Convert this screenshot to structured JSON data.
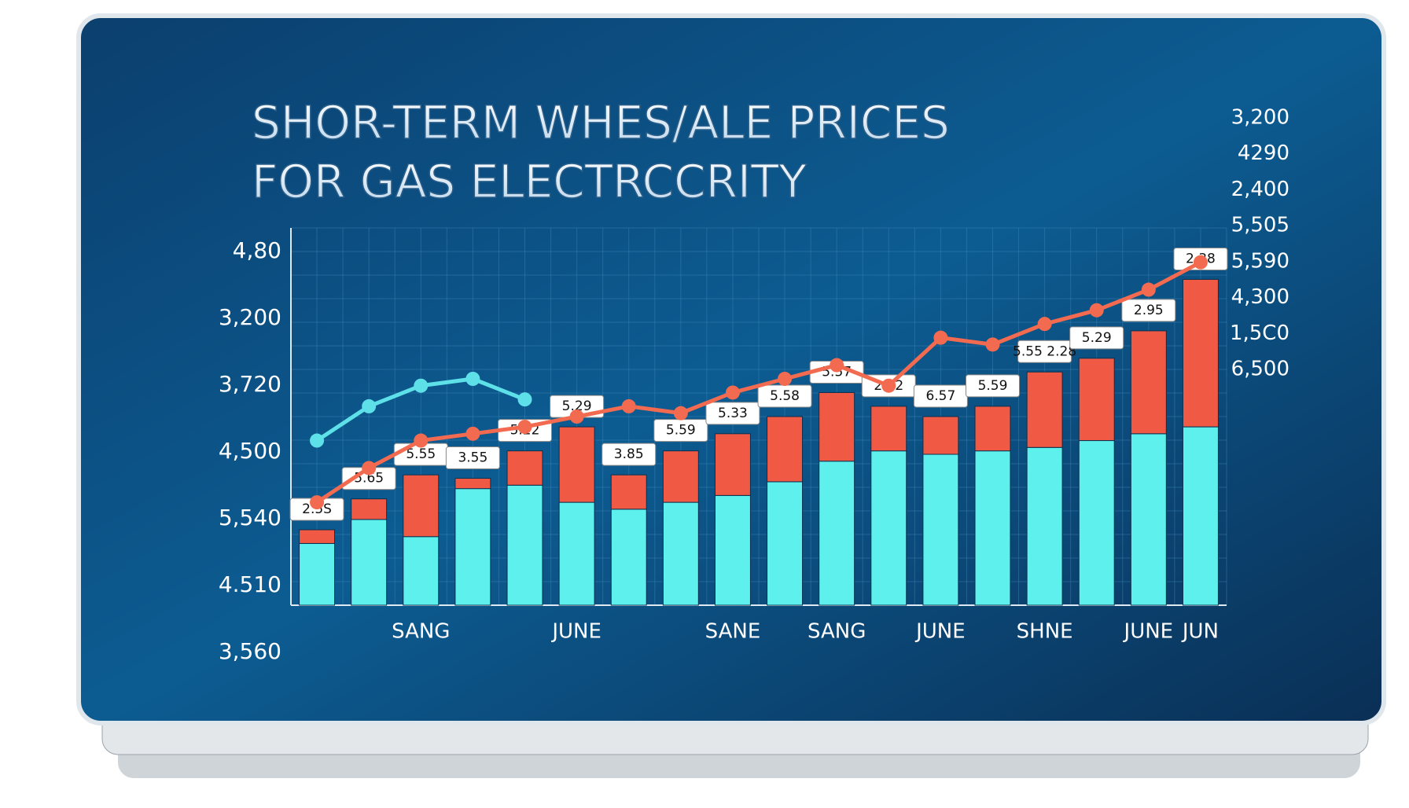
{
  "chart_data": {
    "type": "bar",
    "title": "SHOR-TERM WHES/ALE PRICES",
    "subtitle": "FOR GAS ELECTRCCRITY",
    "categories": [
      null,
      null,
      "SANG",
      null,
      null,
      "JUNE",
      null,
      null,
      "SANE",
      null,
      "SANG",
      null,
      "JUNE",
      null,
      "SHNE",
      null,
      "JUNE",
      "JUN"
    ],
    "series": [
      {
        "color": "#5ef0ec",
        "values": [
          18,
          25,
          20,
          34,
          35,
          30,
          28,
          30,
          32,
          36,
          42,
          45,
          44,
          45,
          46,
          48,
          50,
          52
        ]
      },
      {
        "color": "#f05a45",
        "values": [
          4,
          6,
          18,
          3,
          10,
          22,
          10,
          15,
          18,
          19,
          20,
          13,
          11,
          13,
          22,
          24,
          30,
          43
        ]
      }
    ],
    "lines": [
      {
        "color": "#f26a4f",
        "values": [
          30,
          40,
          48,
          50,
          52,
          55,
          58,
          56,
          62,
          66,
          70,
          64,
          78,
          76,
          82,
          86,
          92,
          100
        ]
      },
      {
        "color": "#5ee0e8",
        "values": [
          48,
          58,
          64,
          66,
          60,
          null,
          null,
          null,
          null,
          null,
          null,
          null,
          null,
          null,
          null,
          null,
          null,
          null
        ]
      }
    ],
    "annotations": [
      "2.5S",
      "5.65",
      "5.55",
      "3.55",
      "5.22",
      "5.29",
      "3.85",
      "5.59",
      "5.33",
      "5.58",
      "5.57",
      "2.52",
      "6.57",
      "5.59",
      "5.55 2.28",
      "5.29",
      "2.95",
      "2.38"
    ],
    "y_axis_labels": [
      "4,80",
      "3,200",
      "3,720",
      "4,500",
      "5,540",
      "4.510",
      "3,560"
    ],
    "y2_axis_labels": [
      "3,200",
      "4290",
      "2,400",
      "5,505",
      "5,590",
      "4,300",
      "1,5C0",
      "6,500"
    ],
    "ylim": [
      0,
      110
    ],
    "grid": true
  }
}
